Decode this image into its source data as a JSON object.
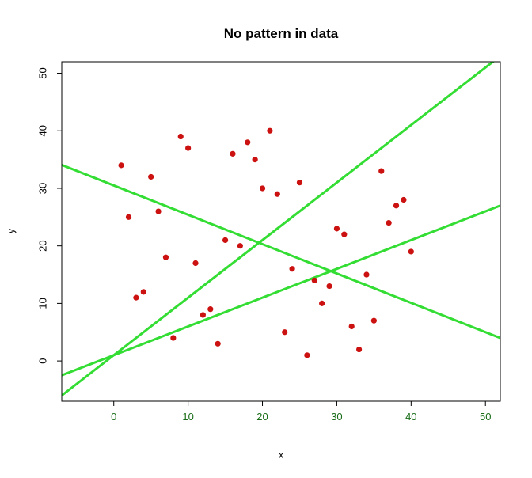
{
  "chart_data": {
    "type": "scatter",
    "title": "No pattern in data",
    "xlabel": "x",
    "ylabel": "y",
    "xlim": [
      -7,
      52
    ],
    "ylim": [
      -7,
      52
    ],
    "xticks": [
      0,
      10,
      20,
      30,
      40,
      50
    ],
    "yticks": [
      0,
      10,
      20,
      30,
      40,
      50
    ],
    "xtick_labels": [
      "0",
      "10",
      "20",
      "30",
      "40",
      "50"
    ],
    "ytick_labels": [
      "0",
      "10",
      "20",
      "30",
      "40",
      "50"
    ],
    "grid": false,
    "legend": false,
    "colors": {
      "points": "#cc1111",
      "lines": "#33dd33",
      "xtick_text": "#1a6e1a",
      "frame": "#000000"
    },
    "series": [
      {
        "values_x": [
          1,
          2,
          3,
          4,
          5,
          6,
          7,
          8,
          9,
          10,
          11,
          12,
          13,
          14,
          15,
          16,
          17,
          18,
          19,
          20,
          21,
          22,
          23,
          24,
          25,
          26,
          27,
          28,
          29,
          30,
          31,
          32,
          33,
          34,
          35,
          36,
          37,
          38,
          39,
          40
        ],
        "values_y": [
          34,
          25,
          11,
          12,
          32,
          26,
          18,
          4,
          39,
          37,
          17,
          8,
          9,
          3,
          21,
          36,
          20,
          38,
          35,
          30,
          40,
          29,
          5,
          16,
          31,
          1,
          14,
          10,
          13,
          23,
          22,
          6,
          2,
          15,
          7,
          33,
          24,
          27,
          28,
          19
        ]
      }
    ],
    "lines": [
      {
        "intercept": 1.0,
        "slope": 1.0
      },
      {
        "intercept": 30.5,
        "slope": -0.51
      },
      {
        "intercept": 1.0,
        "slope": 0.5
      }
    ]
  }
}
